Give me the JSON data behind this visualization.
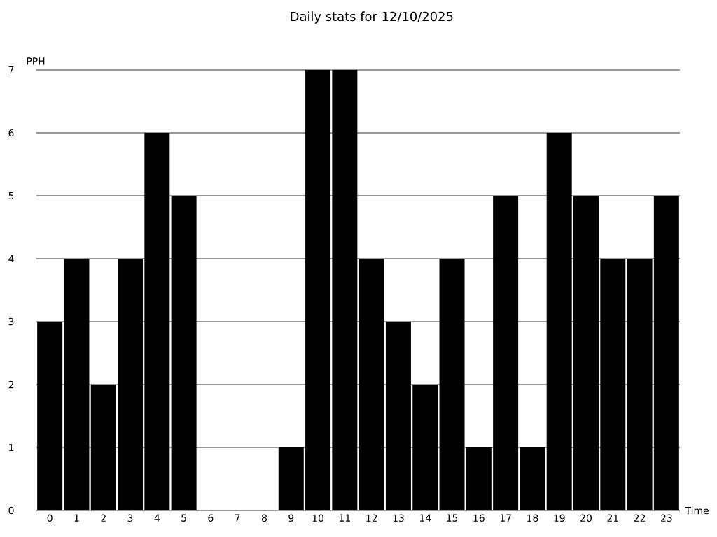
{
  "chart_data": {
    "type": "bar",
    "title": "Daily stats for 12/10/2025",
    "xlabel": "Time",
    "ylabel": "PPH",
    "categories": [
      "0",
      "1",
      "2",
      "3",
      "4",
      "5",
      "6",
      "7",
      "8",
      "9",
      "10",
      "11",
      "12",
      "13",
      "14",
      "15",
      "16",
      "17",
      "18",
      "19",
      "20",
      "21",
      "22",
      "23"
    ],
    "values": [
      3,
      4,
      2,
      4,
      6,
      5,
      0,
      0,
      0,
      1,
      7,
      7,
      4,
      3,
      2,
      4,
      1,
      5,
      1,
      6,
      5,
      4,
      4,
      5
    ],
    "color": "#000000",
    "ylim": [
      0,
      7
    ],
    "yticks": [
      0,
      1,
      2,
      3,
      4,
      5,
      6,
      7
    ],
    "grid": "y"
  }
}
